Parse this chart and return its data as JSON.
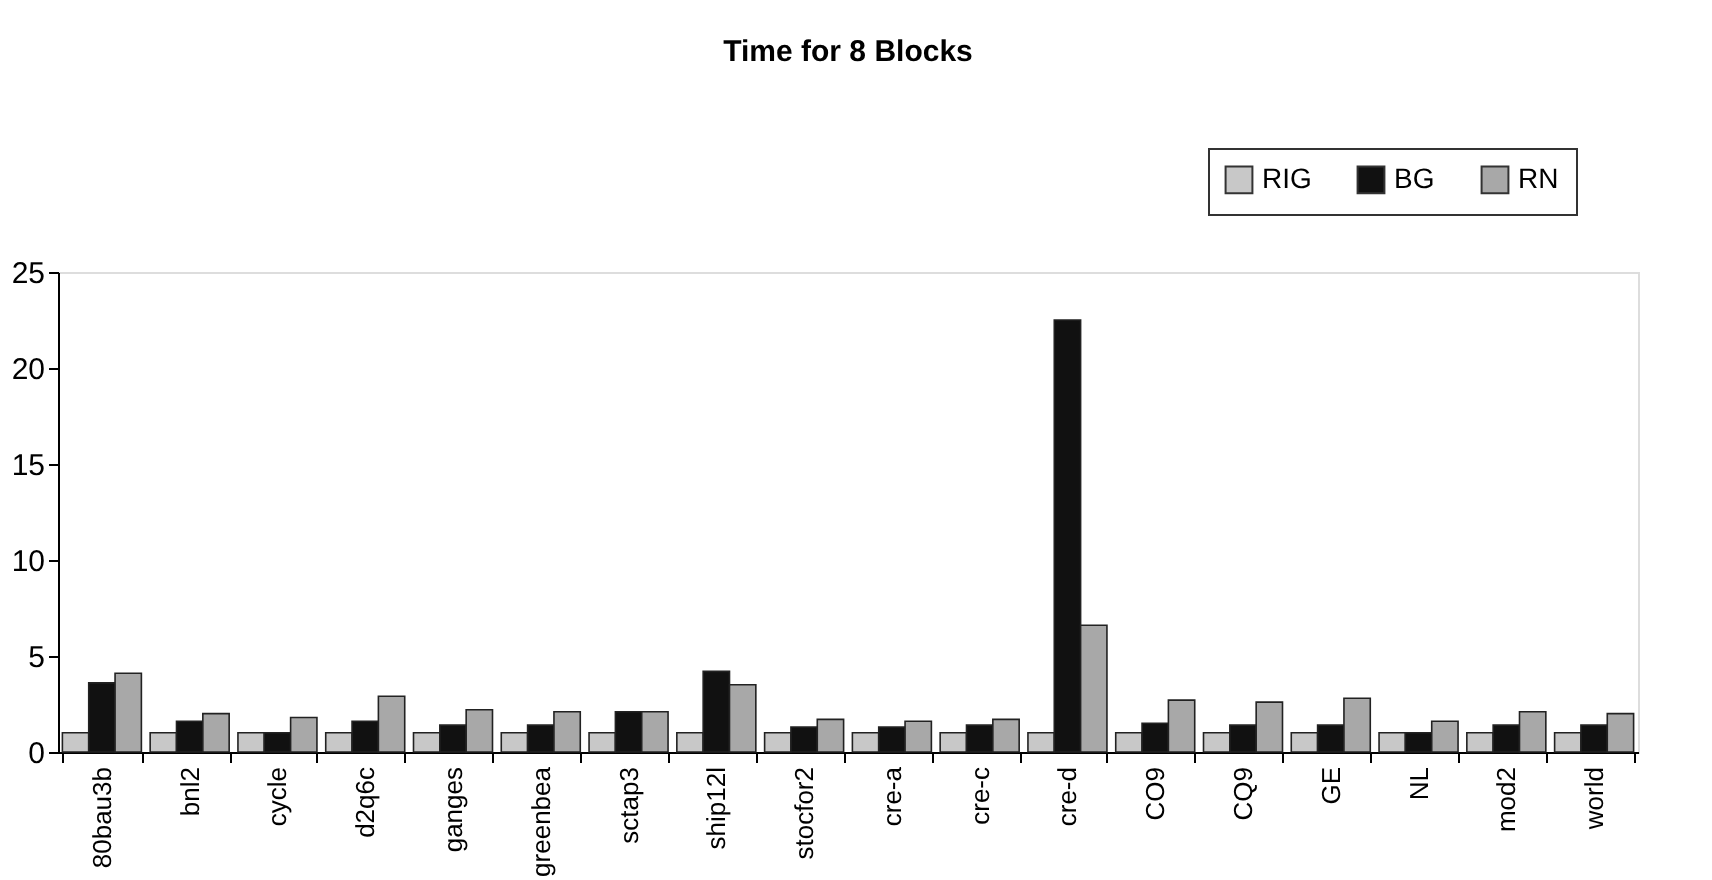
{
  "chart_data": {
    "type": "bar",
    "title": "Time for 8 Blocks",
    "categories": [
      "80bau3b",
      "bnl2",
      "cycle",
      "d2q6c",
      "ganges",
      "greenbea",
      "sctap3",
      "ship12l",
      "stocfor2",
      "cre-a",
      "cre-c",
      "cre-d",
      "CO9",
      "CQ9",
      "GE",
      "NL",
      "mod2",
      "world"
    ],
    "series": [
      {
        "name": "RIG",
        "color": "#c8c8c8",
        "values": [
          1,
          1,
          1,
          1,
          1,
          1,
          1,
          1,
          1,
          1,
          1,
          1,
          1,
          1,
          1,
          1,
          1,
          1
        ]
      },
      {
        "name": "BG",
        "color": "#111111",
        "values": [
          3.6,
          1.6,
          1.0,
          1.6,
          1.4,
          1.4,
          2.1,
          4.2,
          1.3,
          1.3,
          1.4,
          22.5,
          1.5,
          1.4,
          1.4,
          1.0,
          1.4,
          1.4
        ]
      },
      {
        "name": "RN",
        "color": "#a8a8a8",
        "values": [
          4.1,
          2.0,
          1.8,
          2.9,
          2.2,
          2.1,
          2.1,
          3.5,
          1.7,
          1.6,
          1.7,
          6.6,
          2.7,
          2.6,
          2.8,
          1.6,
          2.1,
          2.0
        ]
      }
    ],
    "ylim": [
      0,
      25
    ],
    "yticks": [
      0,
      5,
      10,
      15,
      20,
      25
    ],
    "grid": false,
    "legend": "top right"
  }
}
